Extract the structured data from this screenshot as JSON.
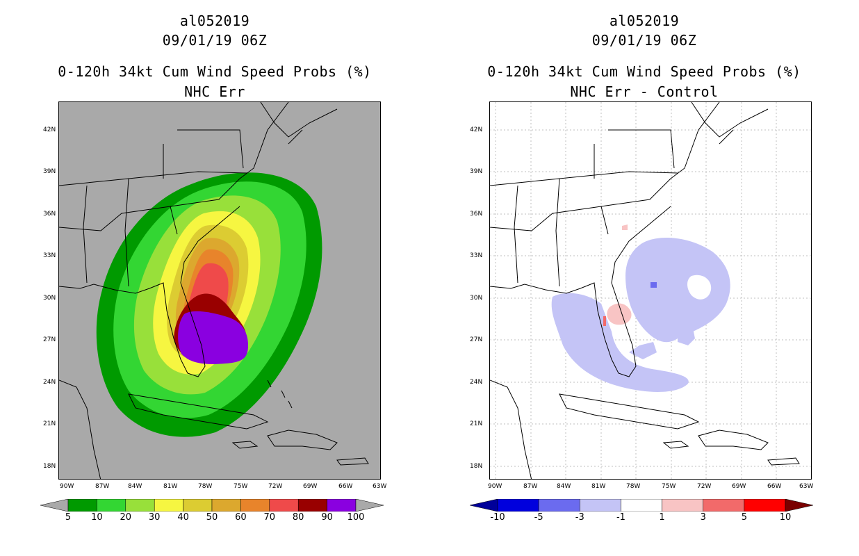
{
  "left_panel": {
    "storm_id": "al052019",
    "datetime": "09/01/19 06Z",
    "product": "0-120h 34kt Cum Wind Speed Probs (%)",
    "subtitle": "NHC Err",
    "background_color": "#a9a9a9",
    "colorbar": {
      "labels": [
        "5",
        "10",
        "20",
        "30",
        "40",
        "50",
        "60",
        "70",
        "80",
        "90",
        "100"
      ],
      "colors": [
        "#009a00",
        "#33d633",
        "#98e03a",
        "#f6f641",
        "#dccc32",
        "#dca82e",
        "#e8842b",
        "#ef4a4a",
        "#990000",
        "#8a00e0"
      ],
      "end_color": "#a9a9a9"
    }
  },
  "right_panel": {
    "storm_id": "al052019",
    "datetime": "09/01/19 06Z",
    "product": "0-120h 34kt Cum Wind Speed Probs (%)",
    "subtitle": "NHC Err - Control",
    "background_color": "#ffffff",
    "colorbar": {
      "labels": [
        "-10",
        "-5",
        "-3",
        "-1",
        "1",
        "3",
        "5",
        "10"
      ],
      "colors": [
        "#0000dd",
        "#6b6bef",
        "#c4c4f6",
        "#ffffff",
        "#f8c4c4",
        "#f26a6a",
        "#ff0000"
      ],
      "left_end_color": "#000099",
      "right_end_color": "#7a0000"
    }
  },
  "axes": {
    "lat_labels": [
      "42N",
      "39N",
      "36N",
      "33N",
      "30N",
      "27N",
      "24N",
      "21N",
      "18N"
    ],
    "lon_labels": [
      "90W",
      "87W",
      "84W",
      "81W",
      "78W",
      "75W",
      "72W",
      "69W",
      "66W",
      "63W"
    ]
  }
}
